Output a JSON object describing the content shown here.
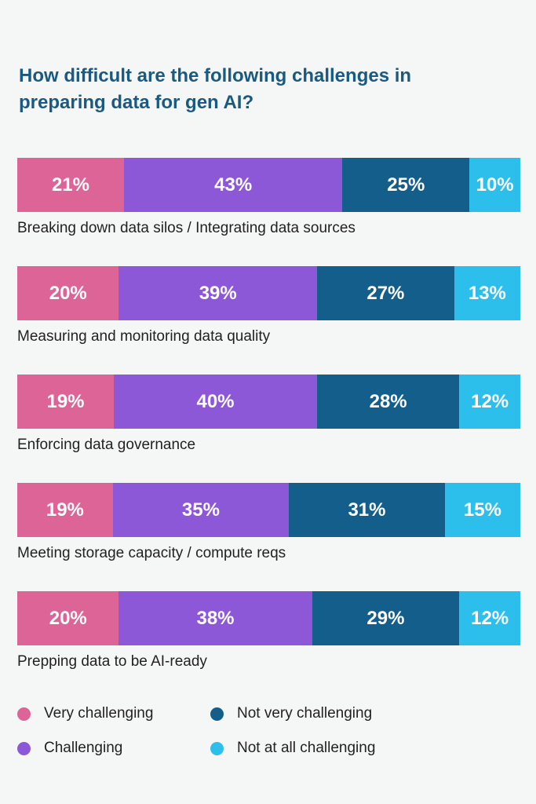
{
  "chart_data": {
    "type": "bar",
    "orientation": "horizontal-stacked",
    "title": "How difficult are the following challenges in preparing data for gen AI?",
    "categories": [
      "Breaking down data silos / Integrating data sources",
      "Measuring and monitoring data quality",
      "Enforcing data governance",
      "Meeting storage capacity / compute reqs",
      "Prepping data to be AI-ready"
    ],
    "series": [
      {
        "name": "Very challenging",
        "color": "#dc6497",
        "values": [
          21,
          20,
          19,
          19,
          20
        ]
      },
      {
        "name": "Challenging",
        "color": "#8c58d8",
        "values": [
          43,
          39,
          40,
          35,
          38
        ]
      },
      {
        "name": "Not very challenging",
        "color": "#135e8a",
        "values": [
          25,
          27,
          28,
          31,
          29
        ]
      },
      {
        "name": "Not at all challenging",
        "color": "#2dbfec",
        "values": [
          10,
          13,
          12,
          15,
          12
        ]
      }
    ],
    "unit": "%",
    "legend_position": "bottom"
  }
}
